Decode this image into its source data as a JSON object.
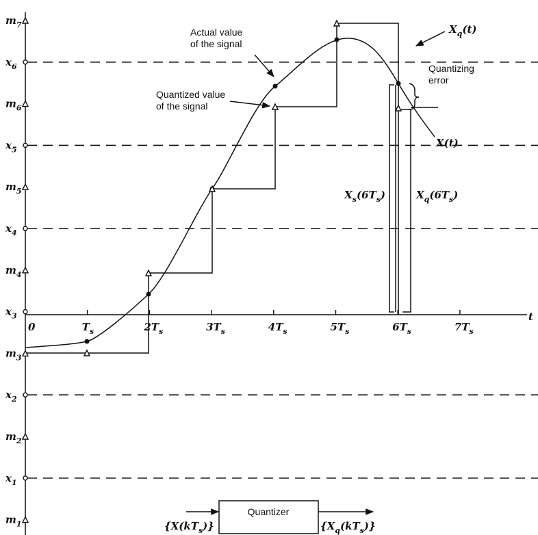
{
  "levels": [
    [
      {
        "t": "m"
      },
      {
        "t": "7",
        "sub": true
      }
    ],
    [
      {
        "t": "x"
      },
      {
        "t": "6",
        "sub": true
      }
    ],
    [
      {
        "t": "m"
      },
      {
        "t": "6",
        "sub": true
      }
    ],
    [
      {
        "t": "x"
      },
      {
        "t": "5",
        "sub": true
      }
    ],
    [
      {
        "t": "m"
      },
      {
        "t": "5",
        "sub": true
      }
    ],
    [
      {
        "t": "x"
      },
      {
        "t": "4",
        "sub": true
      }
    ],
    [
      {
        "t": "m"
      },
      {
        "t": "4",
        "sub": true
      }
    ],
    [
      {
        "t": "x"
      },
      {
        "t": "3",
        "sub": true
      }
    ],
    [
      {
        "t": "m"
      },
      {
        "t": "3",
        "sub": true
      }
    ],
    [
      {
        "t": "x"
      },
      {
        "t": "2",
        "sub": true
      }
    ],
    [
      {
        "t": "m"
      },
      {
        "t": "2",
        "sub": true
      }
    ],
    [
      {
        "t": "x"
      },
      {
        "t": "1",
        "sub": true
      }
    ],
    [
      {
        "t": "m"
      },
      {
        "t": "1",
        "sub": true
      }
    ]
  ],
  "time_ticks": [
    [
      {
        "t": "0"
      }
    ],
    [
      {
        "t": "T"
      },
      {
        "t": "s",
        "sub": true
      }
    ],
    [
      {
        "t": "2T"
      },
      {
        "t": "s",
        "sub": true
      }
    ],
    [
      {
        "t": "3T"
      },
      {
        "t": "s",
        "sub": true
      }
    ],
    [
      {
        "t": "4T"
      },
      {
        "t": "s",
        "sub": true
      }
    ],
    [
      {
        "t": "5T"
      },
      {
        "t": "s",
        "sub": true
      }
    ],
    [
      {
        "t": "6T"
      },
      {
        "t": "s",
        "sub": true
      }
    ],
    [
      {
        "t": "7T"
      },
      {
        "t": "s",
        "sub": true
      }
    ]
  ],
  "time_label": "t",
  "annotations": {
    "actual_value": [
      "Actual value",
      "of the signal"
    ],
    "quantized_value": [
      "Quantized value",
      "of the signal"
    ],
    "quantizing_error": [
      "Quantizing",
      "error"
    ],
    "xq_t": [
      {
        "t": "X"
      },
      {
        "t": "q",
        "sub": true
      },
      {
        "t": "(t)"
      }
    ],
    "x_t": [
      {
        "t": "X(t)"
      }
    ],
    "xs_6ts": [
      {
        "t": "X"
      },
      {
        "t": "s",
        "sub": true
      },
      {
        "t": "(6T"
      },
      {
        "t": "s",
        "sub": true
      },
      {
        "t": ")"
      }
    ],
    "xq_6ts": [
      {
        "t": "X"
      },
      {
        "t": "q",
        "sub": true
      },
      {
        "t": "(6T"
      },
      {
        "t": "s",
        "sub": true
      },
      {
        "t": ")"
      }
    ]
  },
  "block": {
    "label": "Quantizer",
    "input": [
      {
        "t": "{X(kT"
      },
      {
        "t": "s",
        "sub": true
      },
      {
        "t": ")}"
      }
    ],
    "output": [
      {
        "t": "{X"
      },
      {
        "t": "q",
        "sub": true
      },
      {
        "t": "(kT"
      },
      {
        "t": "s",
        "sub": true
      },
      {
        "t": ")}"
      }
    ]
  }
}
